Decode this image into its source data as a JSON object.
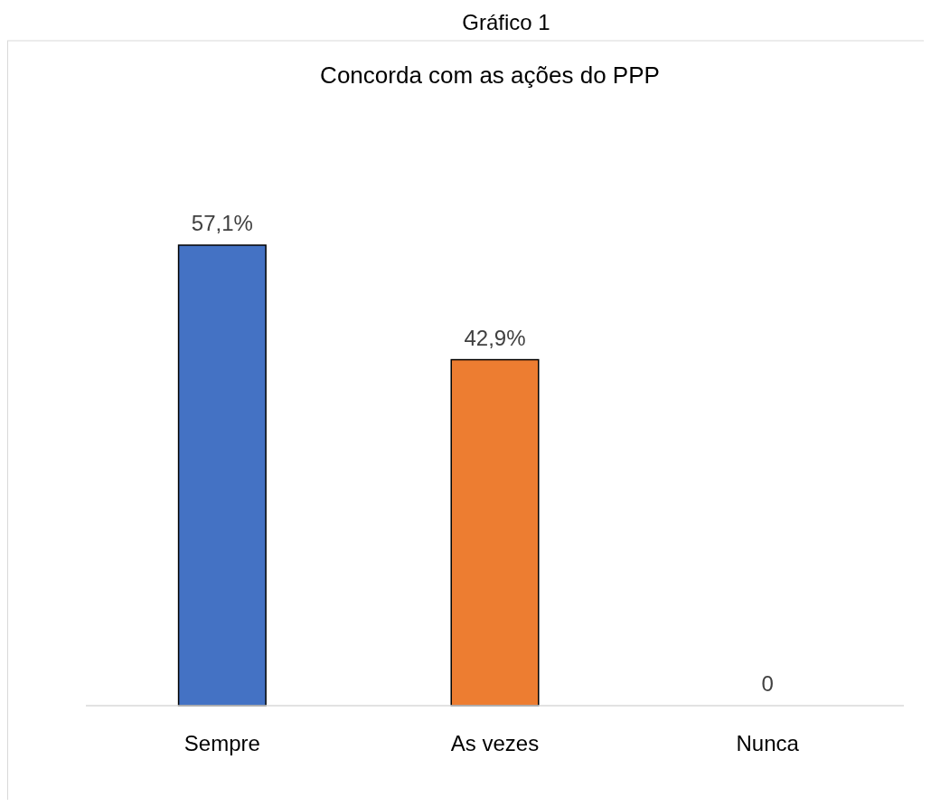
{
  "chart_data": {
    "type": "bar",
    "title": "Gráfico 1",
    "subtitle": "Concorda com as ações do PPP",
    "categories": [
      "Sempre",
      "As vezes",
      "Nunca"
    ],
    "values": [
      57.1,
      42.9,
      0
    ],
    "colors": [
      "#4472c4",
      "#ed7d31",
      "#a5a5a5"
    ],
    "value_labels": [
      "57,1%",
      "42,9%",
      "0"
    ]
  }
}
